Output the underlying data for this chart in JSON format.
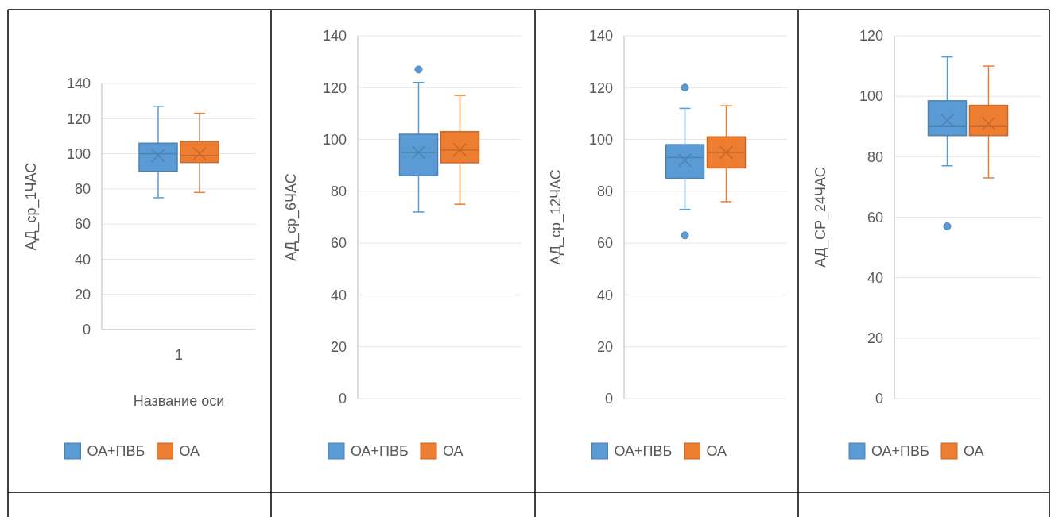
{
  "chart_data": [
    {
      "type": "box",
      "ylabel": "АД_ср_1ЧАС",
      "xlabel": "Название оси",
      "categories": [
        "1"
      ],
      "ylim": [
        0,
        140
      ],
      "yticks": [
        0,
        20,
        40,
        60,
        80,
        100,
        120,
        140
      ],
      "grid": "y",
      "legend": "bottom",
      "series": [
        {
          "name": "ОА+ПВБ",
          "color": "#5b9bd5",
          "boxes": [
            {
              "low": 75,
              "q1": 90,
              "median": 100,
              "q3": 106,
              "high": 127,
              "mean": 99
            }
          ]
        },
        {
          "name": "ОА",
          "color": "#ed7d31",
          "boxes": [
            {
              "low": 78,
              "q1": 95,
              "median": 99,
              "q3": 107,
              "high": 123,
              "mean": 100
            }
          ]
        }
      ]
    },
    {
      "type": "box",
      "ylabel": "АД_ср_6ЧАС",
      "categories": [
        null
      ],
      "ylim": [
        0,
        140
      ],
      "yticks": [
        0,
        20,
        40,
        60,
        80,
        100,
        120,
        140
      ],
      "grid": "y",
      "legend": "bottom",
      "series": [
        {
          "name": "ОА+ПВБ",
          "color": "#5b9bd5",
          "boxes": [
            {
              "low": 72,
              "q1": 86,
              "median": 95,
              "q3": 102,
              "high": 122,
              "mean": 95,
              "outliers": [
                127
              ]
            }
          ]
        },
        {
          "name": "ОА",
          "color": "#ed7d31",
          "boxes": [
            {
              "low": 75,
              "q1": 91,
              "median": 96,
              "q3": 103,
              "high": 117,
              "mean": 96
            }
          ]
        }
      ]
    },
    {
      "type": "box",
      "ylabel": "АД_ср_12ЧАС",
      "categories": [
        null
      ],
      "ylim": [
        0,
        140
      ],
      "yticks": [
        0,
        20,
        40,
        60,
        80,
        100,
        120,
        140
      ],
      "grid": "y",
      "legend": "bottom",
      "series": [
        {
          "name": "ОА+ПВБ",
          "color": "#5b9bd5",
          "boxes": [
            {
              "low": 73,
              "q1": 85,
              "median": 93,
              "q3": 98,
              "high": 112,
              "mean": 92,
              "outliers": [
                120,
                63
              ]
            }
          ]
        },
        {
          "name": "ОА",
          "color": "#ed7d31",
          "boxes": [
            {
              "low": 76,
              "q1": 89,
              "median": 95,
              "q3": 101,
              "high": 113,
              "mean": 95
            }
          ]
        }
      ]
    },
    {
      "type": "box",
      "ylabel": "АД_СР_24ЧАС",
      "categories": [
        null
      ],
      "ylim": [
        0,
        120
      ],
      "yticks": [
        0,
        20,
        40,
        60,
        80,
        100,
        120
      ],
      "grid": "y",
      "legend": "bottom",
      "series": [
        {
          "name": "ОА+ПВБ",
          "color": "#5b9bd5",
          "boxes": [
            {
              "low": 77,
              "q1": 87,
              "median": 90,
              "q3": 98.5,
              "high": 113,
              "mean": 92,
              "outliers": [
                57
              ]
            }
          ]
        },
        {
          "name": "ОА",
          "color": "#ed7d31",
          "boxes": [
            {
              "low": 73,
              "q1": 87,
              "median": 90,
              "q3": 97,
              "high": 110,
              "mean": 91
            }
          ]
        }
      ]
    }
  ]
}
